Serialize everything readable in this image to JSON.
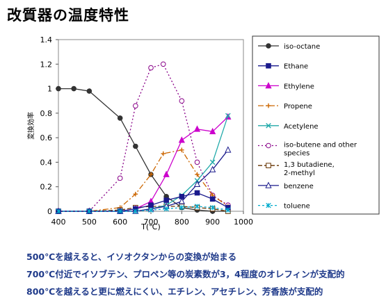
{
  "page_title": "改質器の温度特性",
  "notes": [
    "500℃を越えると、イソオクタンからの変換が始まる",
    "700℃付近でイソブテン、プロペン等の炭素数が3，4程度のオレフィンが支配的",
    "800℃を越えると更に燃えにくい、エチレン、アセチレン、芳香族が支配的"
  ],
  "chart_data": {
    "type": "line",
    "title": "",
    "xlabel": "T(℃)",
    "ylabel": "変換効率",
    "xlim": [
      400,
      1000
    ],
    "ylim": [
      0,
      1.4
    ],
    "xticks": [
      "400",
      "500",
      "600",
      "700",
      "800",
      "900",
      "1000"
    ],
    "yticks": [
      "0",
      "0.2",
      "0.4",
      "0.6",
      "0.8",
      "1",
      "1.2",
      "1.4"
    ],
    "grid": false,
    "legend_position": "right",
    "series": [
      {
        "name": "iso-octane",
        "color": "#333333",
        "dash": "",
        "marker": "circle-filled",
        "points": [
          [
            400,
            1.0
          ],
          [
            450,
            1.0
          ],
          [
            500,
            0.98
          ],
          [
            600,
            0.76
          ],
          [
            650,
            0.53
          ],
          [
            700,
            0.3
          ],
          [
            750,
            0.12
          ],
          [
            800,
            0.03
          ],
          [
            850,
            0.01
          ],
          [
            900,
            0.0
          ],
          [
            950,
            0.0
          ]
        ]
      },
      {
        "name": "Ethane",
        "color": "#1a1a8c",
        "dash": "",
        "marker": "square-filled",
        "points": [
          [
            400,
            0.0
          ],
          [
            500,
            0.0
          ],
          [
            600,
            0.0
          ],
          [
            650,
            0.02
          ],
          [
            700,
            0.05
          ],
          [
            750,
            0.09
          ],
          [
            800,
            0.12
          ],
          [
            850,
            0.15
          ],
          [
            900,
            0.1
          ],
          [
            950,
            0.03
          ]
        ]
      },
      {
        "name": "Ethylene",
        "color": "#cc00cc",
        "dash": "",
        "marker": "triangle-filled",
        "points": [
          [
            400,
            0.0
          ],
          [
            500,
            0.0
          ],
          [
            600,
            0.0
          ],
          [
            650,
            0.02
          ],
          [
            700,
            0.08
          ],
          [
            750,
            0.3
          ],
          [
            800,
            0.58
          ],
          [
            850,
            0.67
          ],
          [
            900,
            0.65
          ],
          [
            950,
            0.77
          ]
        ]
      },
      {
        "name": "Propene",
        "color": "#cc6600",
        "dash": "8,3,2,3",
        "marker": "plus",
        "points": [
          [
            400,
            0.0
          ],
          [
            500,
            0.0
          ],
          [
            600,
            0.03
          ],
          [
            650,
            0.14
          ],
          [
            700,
            0.3
          ],
          [
            740,
            0.47
          ],
          [
            800,
            0.5
          ],
          [
            850,
            0.3
          ],
          [
            900,
            0.13
          ],
          [
            950,
            0.04
          ]
        ]
      },
      {
        "name": "Acetylene",
        "color": "#22aaaa",
        "dash": "",
        "marker": "x",
        "points": [
          [
            400,
            0.0
          ],
          [
            500,
            0.0
          ],
          [
            600,
            0.0
          ],
          [
            650,
            0.0
          ],
          [
            700,
            0.02
          ],
          [
            750,
            0.05
          ],
          [
            800,
            0.13
          ],
          [
            850,
            0.25
          ],
          [
            900,
            0.4
          ],
          [
            950,
            0.78
          ]
        ]
      },
      {
        "name": "iso-butene and other species",
        "color": "#880088",
        "dash": "2,3",
        "marker": "circle-open",
        "points": [
          [
            400,
            0.0
          ],
          [
            500,
            0.0
          ],
          [
            600,
            0.27
          ],
          [
            650,
            0.86
          ],
          [
            700,
            1.17
          ],
          [
            740,
            1.2
          ],
          [
            800,
            0.9
          ],
          [
            850,
            0.4
          ],
          [
            900,
            0.13
          ],
          [
            950,
            0.05
          ]
        ]
      },
      {
        "name": "1,3 butadiene, 2-methyl",
        "color": "#663300",
        "dash": "6,3",
        "marker": "square-open",
        "points": [
          [
            400,
            0.0
          ],
          [
            500,
            0.0
          ],
          [
            600,
            0.01
          ],
          [
            650,
            0.03
          ],
          [
            700,
            0.04
          ],
          [
            750,
            0.04
          ],
          [
            800,
            0.04
          ],
          [
            850,
            0.03
          ],
          [
            900,
            0.02
          ],
          [
            950,
            0.0
          ]
        ]
      },
      {
        "name": "benzene",
        "color": "#1a1a8c",
        "dash": "",
        "marker": "triangle-open",
        "points": [
          [
            400,
            0.0
          ],
          [
            500,
            0.0
          ],
          [
            600,
            0.0
          ],
          [
            650,
            0.0
          ],
          [
            700,
            0.02
          ],
          [
            750,
            0.04
          ],
          [
            800,
            0.08
          ],
          [
            850,
            0.22
          ],
          [
            900,
            0.34
          ],
          [
            950,
            0.5
          ]
        ]
      },
      {
        "name": "toluene",
        "color": "#00aacc",
        "dash": "3,3",
        "marker": "asterisk",
        "points": [
          [
            400,
            0.0
          ],
          [
            500,
            0.0
          ],
          [
            600,
            0.0
          ],
          [
            650,
            0.0
          ],
          [
            700,
            0.01
          ],
          [
            750,
            0.02
          ],
          [
            800,
            0.03
          ],
          [
            850,
            0.04
          ],
          [
            900,
            0.03
          ],
          [
            950,
            0.01
          ]
        ]
      }
    ]
  }
}
